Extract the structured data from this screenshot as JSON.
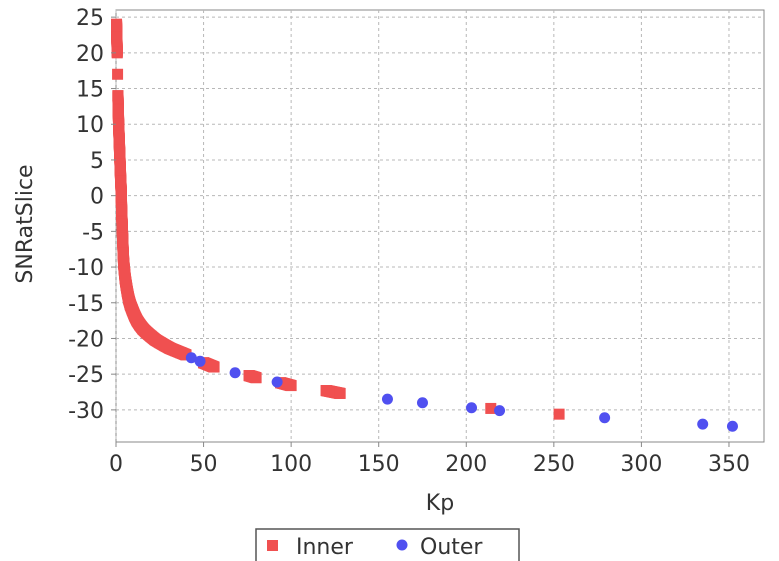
{
  "chart_data": {
    "type": "scatter",
    "xlabel": "Kp",
    "ylabel": "SNRatSlice",
    "xlim": [
      0,
      370
    ],
    "ylim": [
      -34.5,
      26
    ],
    "x_ticks": [
      0,
      50,
      100,
      150,
      200,
      250,
      300,
      350
    ],
    "y_ticks": [
      25,
      20,
      15,
      10,
      5,
      0,
      -5,
      -10,
      -15,
      -20,
      -25,
      -30
    ],
    "grid": true,
    "legend_position": "bottom",
    "series": [
      {
        "name": "Inner",
        "marker": "square",
        "color": "#f05050",
        "points": [
          [
            0.3,
            24
          ],
          [
            0.5,
            22
          ],
          [
            0.7,
            20
          ],
          [
            0.9,
            17
          ],
          [
            1.1,
            14
          ],
          [
            1.3,
            12
          ],
          [
            1.5,
            10
          ],
          [
            1.8,
            8
          ],
          [
            2.1,
            6
          ],
          [
            2.4,
            4
          ],
          [
            2.7,
            2
          ],
          [
            3.0,
            0.5
          ],
          [
            3.2,
            -2
          ],
          [
            3.5,
            -4
          ],
          [
            3.8,
            -6
          ],
          [
            4.1,
            -8
          ],
          [
            4.4,
            -9.5
          ],
          [
            4.8,
            -10.5
          ],
          [
            5.2,
            -11.5
          ],
          [
            5.8,
            -12.5
          ],
          [
            6.5,
            -13.5
          ],
          [
            7.3,
            -14.5
          ],
          [
            8.2,
            -15.3
          ],
          [
            9.3,
            -16
          ],
          [
            10.6,
            -16.8
          ],
          [
            12,
            -17.5
          ],
          [
            13.6,
            -18.1
          ],
          [
            15.5,
            -18.7
          ],
          [
            17.6,
            -19.2
          ],
          [
            20,
            -19.7
          ],
          [
            22.5,
            -20.2
          ],
          [
            25.2,
            -20.6
          ],
          [
            28,
            -21
          ],
          [
            31,
            -21.4
          ],
          [
            34,
            -21.7
          ],
          [
            37,
            -22
          ],
          [
            40,
            -22.3
          ],
          [
            50,
            -23.4
          ],
          [
            56,
            -24
          ],
          [
            76,
            -25.2
          ],
          [
            80,
            -25.5
          ],
          [
            94,
            -26.2
          ],
          [
            100,
            -26.6
          ],
          [
            120,
            -27.3
          ],
          [
            128,
            -27.7
          ],
          [
            214,
            -29.8
          ],
          [
            253,
            -30.6
          ]
        ]
      },
      {
        "name": "Outer",
        "marker": "circle",
        "color": "#5050f0",
        "points": [
          [
            43,
            -22.7
          ],
          [
            48,
            -23.2
          ],
          [
            68,
            -24.8
          ],
          [
            92,
            -26.1
          ],
          [
            155,
            -28.5
          ],
          [
            175,
            -29
          ],
          [
            203,
            -29.7
          ],
          [
            219,
            -30.1
          ],
          [
            279,
            -31.1
          ],
          [
            335,
            -32
          ],
          [
            352,
            -32.3
          ]
        ]
      }
    ]
  }
}
